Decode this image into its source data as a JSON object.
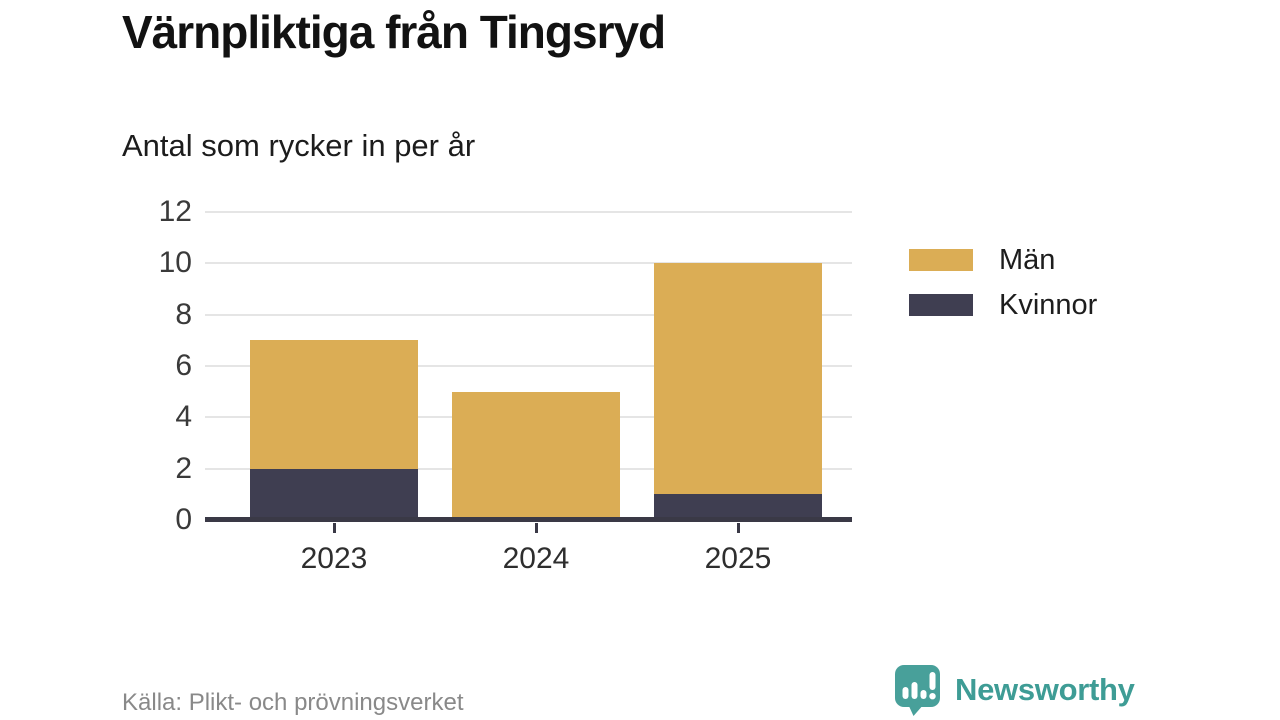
{
  "chart_data": {
    "type": "bar",
    "stacked": true,
    "title": "Värnpliktiga från Tingsryd",
    "subtitle": "Antal som rycker in per år",
    "categories": [
      "2023",
      "2024",
      "2025"
    ],
    "series": [
      {
        "name": "Män",
        "color": "#DBAD55",
        "values": [
          5,
          5,
          9
        ]
      },
      {
        "name": "Kvinnor",
        "color": "#3F3E51",
        "values": [
          2,
          0,
          1
        ]
      }
    ],
    "totals": [
      7,
      5,
      10
    ],
    "stack_order_bottom_to_top": [
      "Kvinnor",
      "Män"
    ],
    "ylim": [
      0,
      12
    ],
    "yticks": [
      0,
      2,
      4,
      6,
      8,
      10,
      12
    ],
    "grid": true,
    "legend_position": "right"
  },
  "footer": {
    "source": "Källa: Plikt- och prövningsverket",
    "brand": "Newsworthy",
    "brand_color": "#3E9C95"
  },
  "colors": {
    "background": "#ffffff",
    "gridline": "#E5E5E5",
    "axis": "#3A3946",
    "tick_label": "#3a3a3a",
    "source_text": "#898989",
    "logo_teal": "#48A09A"
  }
}
